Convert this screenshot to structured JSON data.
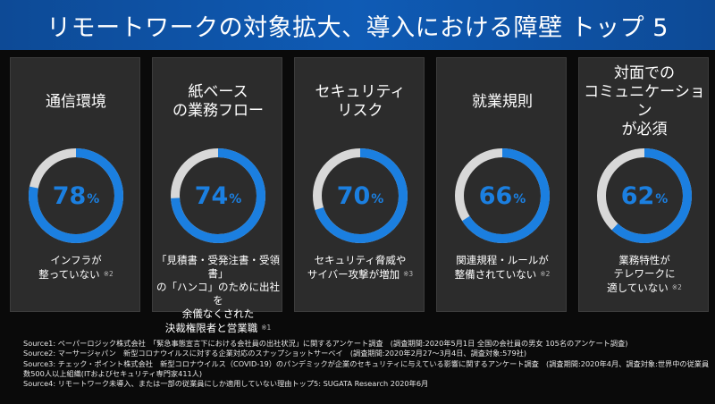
{
  "title": "リモートワークの対象拡大、導入における障壁 トップ 5",
  "colors": {
    "accent": "#1b7fe0",
    "track": "#d8d8d8",
    "header": "#0f5bb5",
    "card": "#2c2c2c"
  },
  "cards": [
    {
      "title": "通信環境",
      "value": 78,
      "unit": "%",
      "note": "インフラが\n整っていない",
      "ref": "※2"
    },
    {
      "title": "紙ベース\nの業務フロー",
      "value": 74,
      "unit": "%",
      "note": "「見積書・受発注書・受領書」\nの「ハンコ」のために出社を\n余儀なくされた\n決裁権限者と営業職",
      "ref": "※1"
    },
    {
      "title": "セキュリティ\nリスク",
      "value": 70,
      "unit": "%",
      "note": "セキュリティ脅威や\nサイバー攻撃が増加",
      "ref": "※3"
    },
    {
      "title": "就業規則",
      "value": 66,
      "unit": "%",
      "note": "関連規程・ルールが\n整備されていない",
      "ref": "※2"
    },
    {
      "title": "対面での\nコミュニケーション\nが必須",
      "value": 62,
      "unit": "%",
      "note": "業務特性が\nテレワークに\n適していない",
      "ref": "※2"
    }
  ],
  "sources": [
    "Source1: ペーパーロジック株式会社　「緊急事態宣言下における会社員の出社状況」に関するアンケート調査　(調査期間:2020年5月1日 全国の会社員の男女 105名のアンケート調査)",
    "Source2: マーサージャパン　新型コロナウイルスに対する企業対応のスナップショットサーベイ　(調査期間:2020年2月27～3月4日、調査対象:579社)",
    "Source3: チェック・ポイント株式会社　新型コロナウイルス（COVID-19）のパンデミックが企業のセキュリティに与えている影響に関するアンケート調査　(調査期間:2020年4月、調査対象:世界中の従業員",
    "数500人以上組織(ITおよびセキュリティ専門家411人)",
    "Source4: リモートワーク未導入、または一部の従業員にしか適用していない理由トップ5: SUGATA Research 2020年6月"
  ],
  "chart_data": {
    "type": "pie",
    "title": "リモートワークの対象拡大、導入における障壁 トップ 5",
    "categories": [
      "通信環境",
      "紙ベースの業務フロー",
      "セキュリティリスク",
      "就業規則",
      "対面でのコミュニケーションが必須"
    ],
    "values": [
      78,
      74,
      70,
      66,
      62
    ],
    "unit": "%",
    "ylim": [
      0,
      100
    ]
  }
}
